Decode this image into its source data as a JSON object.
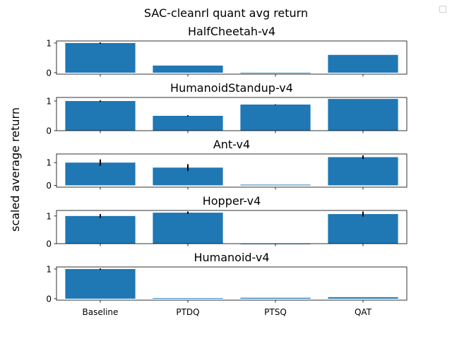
{
  "chart_data": {
    "type": "bar",
    "title": "SAC-cleanrl quant avg return",
    "ylabel": "scaled average return",
    "categories": [
      "Baseline",
      "PTDQ",
      "PTSQ",
      "QAT"
    ],
    "bar_color": "#1f77b4",
    "error_color": "#000000",
    "grid": false,
    "legend": "top-right (empty)",
    "subplots": [
      {
        "title": "HalfCheetah-v4",
        "values": [
          1.0,
          0.24,
          0.0,
          0.6
        ],
        "errors": [
          0.02,
          0.0,
          0.0,
          0.0
        ],
        "ylim": [
          -0.05,
          1.07
        ],
        "yticks": [
          0,
          1
        ]
      },
      {
        "title": "HumanoidStandup-v4",
        "values": [
          1.0,
          0.5,
          0.88,
          1.07
        ],
        "errors": [
          0.02,
          0.02,
          0.01,
          0.0
        ],
        "ylim": [
          0.0,
          1.12
        ],
        "yticks": [
          0,
          1
        ]
      },
      {
        "title": "Ant-v4",
        "values": [
          1.0,
          0.78,
          0.03,
          1.24
        ],
        "errors": [
          0.14,
          0.15,
          0.0,
          0.08
        ],
        "ylim": [
          -0.08,
          1.38
        ],
        "yticks": [
          0,
          1
        ]
      },
      {
        "title": "Hopper-v4",
        "values": [
          1.0,
          1.12,
          0.0,
          1.07
        ],
        "errors": [
          0.07,
          0.04,
          0.0,
          0.09
        ],
        "ylim": [
          0.0,
          1.2
        ],
        "yticks": [
          0,
          1
        ]
      },
      {
        "title": "Humanoid-v4",
        "values": [
          1.0,
          0.02,
          0.03,
          0.05
        ],
        "errors": [
          0.02,
          0.0,
          0.0,
          0.0
        ],
        "ylim": [
          -0.05,
          1.07
        ],
        "yticks": [
          0,
          1
        ]
      }
    ]
  }
}
